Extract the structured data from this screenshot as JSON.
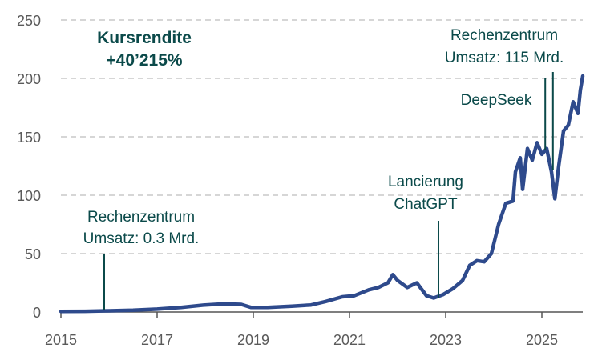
{
  "chart_data": {
    "type": "line",
    "title": "",
    "xlabel": "",
    "ylabel": "",
    "xlim": [
      2015,
      2025.85
    ],
    "ylim": [
      0,
      250
    ],
    "grid": "horizontal-dashed",
    "y_ticks": [
      0,
      50,
      100,
      150,
      200,
      250
    ],
    "x_ticks": [
      2015,
      2017,
      2019,
      2021,
      2023,
      2025
    ],
    "y_tick_labels": [
      "0",
      "50",
      "100",
      "150",
      "200",
      "250"
    ],
    "x_tick_labels": [
      "2015",
      "2017",
      "2019",
      "2021",
      "2023",
      "2025"
    ],
    "colors": {
      "line": "#2e4a8c",
      "annotation": "#0b4a4a",
      "grid": "#c8c8c8",
      "axis": "#555555"
    },
    "series": [
      {
        "x": [
          2015.0,
          2015.5,
          2016.0,
          2016.5,
          2017.0,
          2017.5,
          2018.0,
          2018.4,
          2018.75,
          2018.95,
          2019.3,
          2019.8,
          2020.2,
          2020.5,
          2020.85,
          2021.1,
          2021.4,
          2021.6,
          2021.8,
          2021.9,
          2022.0,
          2022.2,
          2022.4,
          2022.6,
          2022.75,
          2022.95,
          2023.15,
          2023.35,
          2023.5,
          2023.65,
          2023.8,
          2023.95,
          2024.1,
          2024.25,
          2024.4,
          2024.45,
          2024.55,
          2024.6,
          2024.7,
          2024.8,
          2024.9,
          2025.0,
          2025.1,
          2025.2,
          2025.27,
          2025.35,
          2025.45,
          2025.55,
          2025.65,
          2025.75,
          2025.8,
          2025.85
        ],
        "values": [
          0.5,
          0.6,
          1,
          1.5,
          2.5,
          4,
          6,
          7,
          6.5,
          4,
          4,
          5,
          6,
          9,
          13,
          14,
          19,
          21,
          25,
          32,
          27,
          21,
          25,
          14,
          12,
          15,
          20,
          27,
          40,
          44,
          43,
          50,
          75,
          93,
          95,
          120,
          132,
          105,
          140,
          130,
          145,
          135,
          140,
          120,
          97,
          125,
          155,
          160,
          180,
          170,
          190,
          202
        ]
      }
    ],
    "annotations": {
      "headline_title": "Kursrendite",
      "headline_value": "+40’215%",
      "rz2016_line1": "Rechenzentrum",
      "rz2016_line2": "Umsatz: 0.3 Mrd.",
      "chatgpt_line1": "Lancierung",
      "chatgpt_line2": "ChatGPT",
      "deepseek": "DeepSeek",
      "rz2025_line1": "Rechenzentrum",
      "rz2025_line2": "Umsatz: 115 Mrd."
    },
    "annotation_x": {
      "rz2016": 2015.9,
      "chatgpt": 2022.85,
      "deepseek": 2025.07,
      "rz2025": 2025.23
    }
  }
}
